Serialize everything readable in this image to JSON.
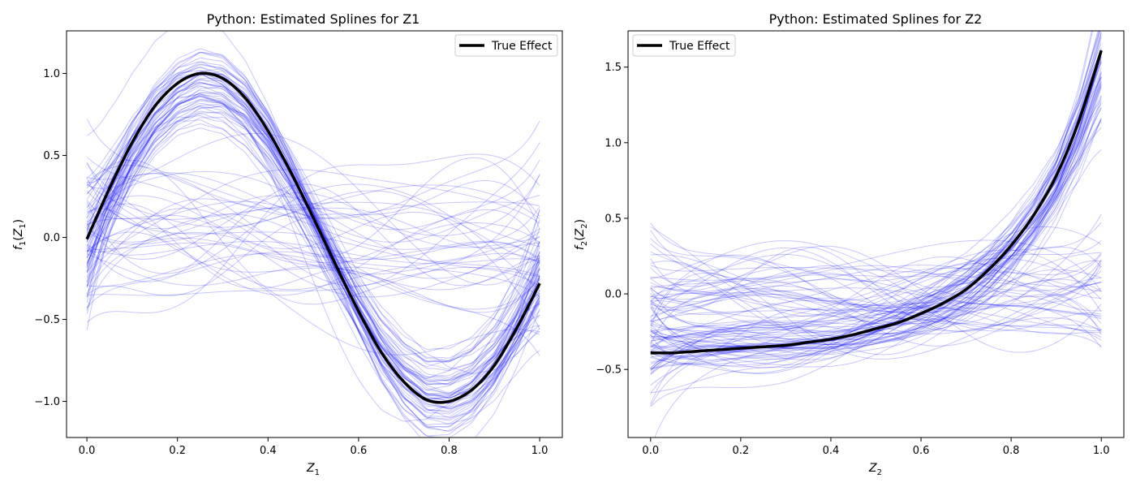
{
  "chart_data": [
    {
      "type": "line",
      "title": "Python: Estimated Splines for Z1",
      "xlabel": {
        "base": "Z",
        "sub": "1"
      },
      "ylabel": {
        "func": "f",
        "sub": "1",
        "arg": "Z",
        "argsub": "1"
      },
      "xlim": [
        -0.045,
        1.05
      ],
      "ylim": [
        -1.22,
        1.26
      ],
      "xticks": [
        0.0,
        0.2,
        0.4,
        0.6,
        0.8,
        1.0
      ],
      "xtick_labels": [
        "0.0",
        "0.2",
        "0.4",
        "0.6",
        "0.8",
        "1.0"
      ],
      "yticks": [
        -1.0,
        -0.5,
        0.0,
        0.5,
        1.0
      ],
      "ytick_labels": [
        "−1.0",
        "−0.5",
        "0.0",
        "0.5",
        "1.0"
      ],
      "legend_position": "top-right",
      "true_effect": {
        "name": "True Effect",
        "color": "#000000",
        "x": [
          0.0,
          0.05,
          0.1,
          0.15,
          0.2,
          0.25,
          0.3,
          0.35,
          0.4,
          0.45,
          0.5,
          0.55,
          0.6,
          0.65,
          0.7,
          0.75,
          0.8,
          0.85,
          0.9,
          0.95,
          1.0
        ],
        "y": [
          -0.01,
          0.3,
          0.58,
          0.8,
          0.94,
          1.0,
          0.97,
          0.85,
          0.65,
          0.4,
          0.12,
          -0.17,
          -0.45,
          -0.7,
          -0.88,
          -0.99,
          -1.0,
          -0.93,
          -0.78,
          -0.55,
          -0.28
        ]
      },
      "bootstrap_splines": {
        "color": "#0000ff",
        "count": 100,
        "x_range": [
          0,
          1
        ],
        "estimate_fraction": 0.6,
        "noise_level": 0.12,
        "flat_level": 0.26,
        "seed": 7
      }
    },
    {
      "type": "line",
      "title": "Python: Estimated Splines for Z2",
      "xlabel": {
        "base": "Z",
        "sub": "2"
      },
      "ylabel": {
        "func": "f",
        "sub": "2",
        "arg": "Z",
        "argsub": "2"
      },
      "xlim": [
        -0.05,
        1.05
      ],
      "ylim": [
        -0.95,
        1.74
      ],
      "xticks": [
        0.0,
        0.2,
        0.4,
        0.6,
        0.8,
        1.0
      ],
      "xtick_labels": [
        "0.0",
        "0.2",
        "0.4",
        "0.6",
        "0.8",
        "1.0"
      ],
      "yticks": [
        -0.5,
        0.0,
        0.5,
        1.0,
        1.5
      ],
      "ytick_labels": [
        "−0.5",
        "0.0",
        "0.5",
        "1.0",
        "1.5"
      ],
      "legend_position": "top-left",
      "true_effect": {
        "name": "True Effect",
        "color": "#000000",
        "x": [
          0.0,
          0.05,
          0.1,
          0.15,
          0.2,
          0.25,
          0.3,
          0.35,
          0.4,
          0.45,
          0.5,
          0.55,
          0.6,
          0.65,
          0.7,
          0.75,
          0.8,
          0.85,
          0.9,
          0.95,
          1.0
        ],
        "y": [
          -0.39,
          -0.39,
          -0.38,
          -0.37,
          -0.36,
          -0.35,
          -0.34,
          -0.32,
          -0.3,
          -0.27,
          -0.23,
          -0.19,
          -0.13,
          -0.06,
          0.03,
          0.16,
          0.32,
          0.52,
          0.78,
          1.14,
          1.61
        ]
      },
      "bootstrap_splines": {
        "color": "#0000ff",
        "count": 100,
        "x_range": [
          0,
          1
        ],
        "estimate_fraction": 0.6,
        "noise_level": 0.1,
        "flat_level": 0.22,
        "seed": 23
      }
    }
  ]
}
